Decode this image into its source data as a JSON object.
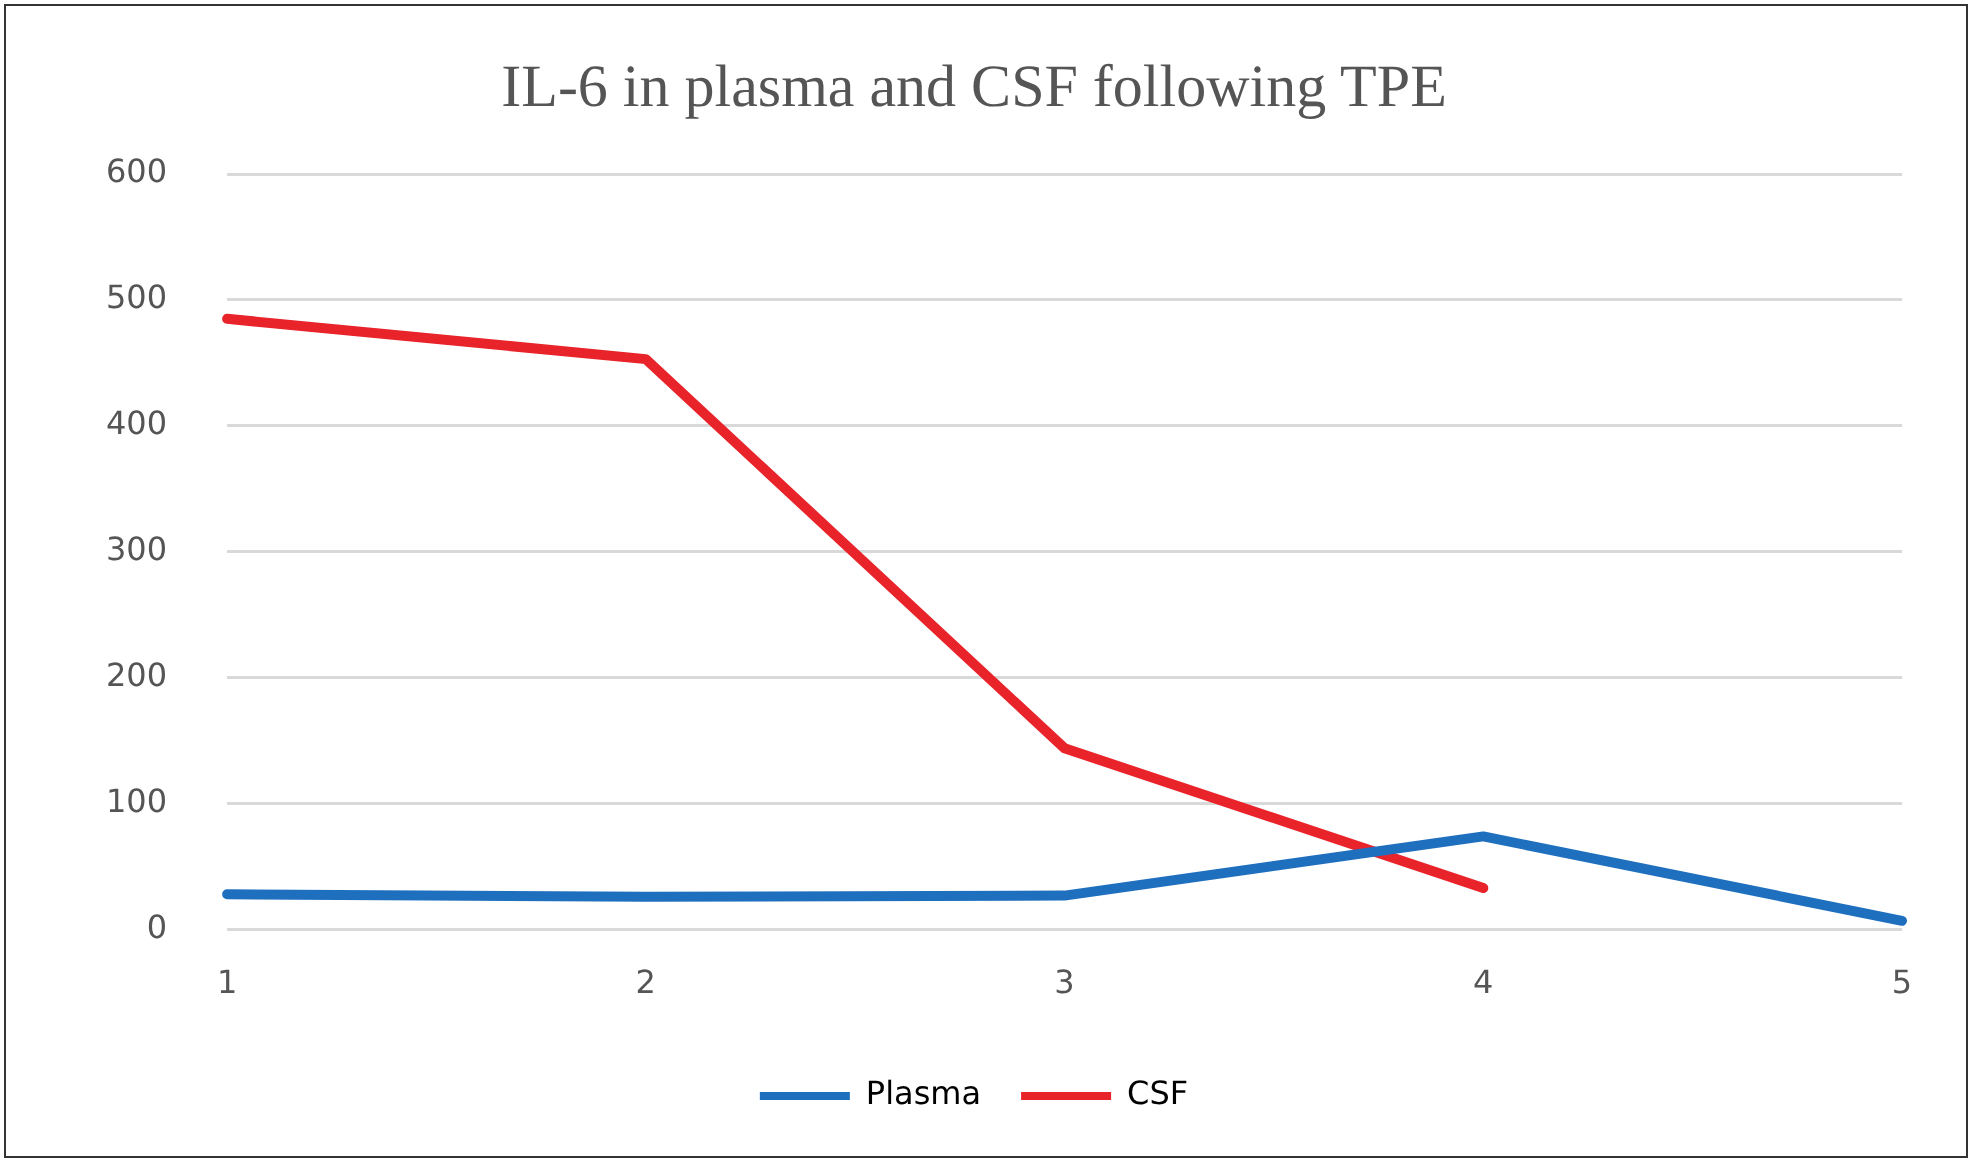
{
  "chart_data": {
    "type": "line",
    "title": "IL-6 in plasma and CSF following TPE",
    "categories": [
      "1",
      "2",
      "3",
      "4",
      "5"
    ],
    "series": [
      {
        "name": "Plasma",
        "color": "#1f6fbf",
        "values": [
          28,
          26,
          27,
          74,
          7
        ]
      },
      {
        "name": "CSF",
        "color": "#e8232a",
        "values": [
          485,
          453,
          144,
          33,
          null
        ]
      }
    ],
    "ylim": [
      0,
      600
    ],
    "yticks": [
      0,
      100,
      200,
      300,
      400,
      500,
      600
    ],
    "grid": "y",
    "legend": "bottom",
    "marker": "none",
    "line_style": "solid"
  }
}
